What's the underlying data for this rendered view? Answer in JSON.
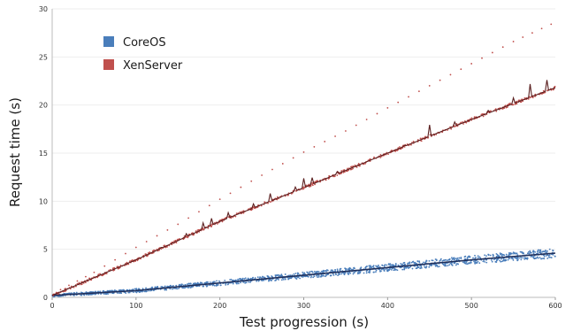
{
  "chart_data": {
    "type": "scatter",
    "title": "",
    "xlabel": "Test progression (s)",
    "ylabel": "Request time (s)",
    "xlim": [
      0,
      600
    ],
    "ylim": [
      0,
      30
    ],
    "xticks": [
      "0",
      "100",
      "200",
      "300",
      "400",
      "500",
      "600"
    ],
    "yticks": [
      "0",
      "5",
      "10",
      "15",
      "20",
      "25",
      "30"
    ],
    "grid": "horizontal",
    "legend_position": "top-left",
    "series": [
      {
        "name": "CoreOS",
        "color": "#4a7ebb",
        "line_color": "#1f2f5a",
        "trend": [
          [
            0,
            0.2
          ],
          [
            100,
            0.7
          ],
          [
            200,
            1.5
          ],
          [
            300,
            2.3
          ],
          [
            400,
            3.1
          ],
          [
            500,
            3.9
          ],
          [
            600,
            4.6
          ]
        ],
        "spread": 0.35
      },
      {
        "name": "XenServer",
        "color": "#c0504d",
        "line_color": "#5a1f1f",
        "trend": [
          [
            0,
            0.2
          ],
          [
            100,
            3.9
          ],
          [
            200,
            7.9
          ],
          [
            300,
            11.4
          ],
          [
            400,
            15.0
          ],
          [
            500,
            18.5
          ],
          [
            600,
            21.8
          ]
        ],
        "spread": 0.15,
        "outliers": [
          [
            10,
            0.8
          ],
          [
            50,
            2.6
          ],
          [
            100,
            5.2
          ],
          [
            150,
            7.6
          ],
          [
            200,
            10.2
          ],
          [
            250,
            12.7
          ],
          [
            300,
            15.1
          ],
          [
            350,
            17.3
          ],
          [
            400,
            19.7
          ],
          [
            450,
            22.0
          ],
          [
            500,
            24.3
          ],
          [
            550,
            26.6
          ],
          [
            595,
            28.4
          ]
        ]
      }
    ]
  }
}
